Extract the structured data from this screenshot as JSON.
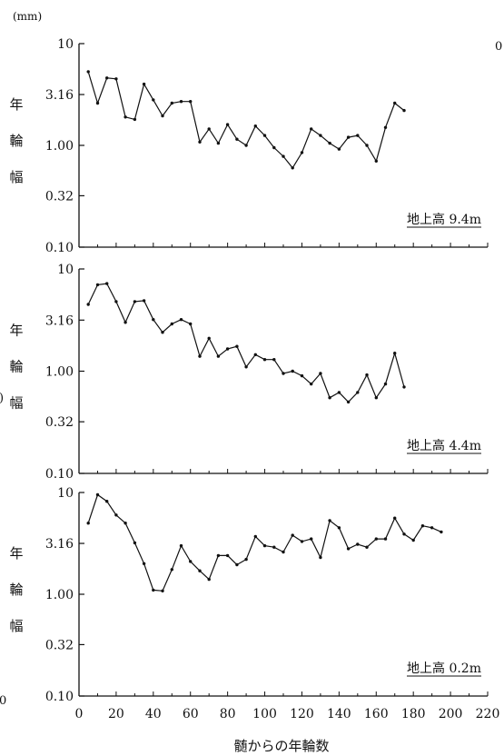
{
  "chart_data": [
    {
      "type": "line",
      "unit": "(mm)",
      "ylabel": [
        "年",
        "輪",
        "幅"
      ],
      "yscale": "log",
      "ylim": [
        0.1,
        10
      ],
      "yticks": [
        "10",
        "3.16",
        "1.00",
        "0.32",
        "0.10"
      ],
      "xlim": [
        0,
        220
      ],
      "label": "地上高 9.4m",
      "x": [
        5,
        10,
        15,
        20,
        25,
        30,
        35,
        40,
        45,
        50,
        55,
        60,
        65,
        70,
        75,
        80,
        85,
        90,
        95,
        100,
        105,
        110,
        115,
        120,
        125,
        130,
        135,
        140,
        145,
        150,
        155,
        160,
        165,
        170,
        175
      ],
      "y": [
        5.3,
        2.6,
        4.6,
        4.5,
        1.9,
        1.8,
        4.0,
        2.8,
        1.95,
        2.6,
        2.7,
        2.7,
        1.08,
        1.45,
        1.05,
        1.6,
        1.15,
        1.0,
        1.55,
        1.25,
        0.95,
        0.78,
        0.6,
        0.85,
        1.45,
        1.25,
        1.05,
        0.92,
        1.2,
        1.25,
        1.0,
        0.7,
        1.5,
        2.6,
        2.2
      ]
    },
    {
      "type": "line",
      "ylabel": [
        "年",
        "輪",
        "幅"
      ],
      "yscale": "log",
      "ylim": [
        0.1,
        10
      ],
      "yticks": [
        "10",
        "3.16",
        "1.00",
        "0.32",
        "0.10"
      ],
      "xlim": [
        0,
        220
      ],
      "label": "地上高 4.4m",
      "x": [
        5,
        10,
        15,
        20,
        25,
        30,
        35,
        40,
        45,
        50,
        55,
        60,
        65,
        70,
        75,
        80,
        85,
        90,
        95,
        100,
        105,
        110,
        115,
        120,
        125,
        130,
        135,
        140,
        145,
        150,
        155,
        160,
        165,
        170,
        175
      ],
      "y": [
        4.5,
        7.0,
        7.2,
        4.8,
        3.0,
        4.8,
        4.9,
        3.2,
        2.4,
        2.9,
        3.2,
        2.9,
        1.4,
        2.1,
        1.4,
        1.65,
        1.75,
        1.1,
        1.45,
        1.3,
        1.3,
        0.95,
        1.0,
        0.9,
        0.75,
        0.95,
        0.55,
        0.62,
        0.5,
        0.62,
        0.92,
        0.55,
        0.75,
        1.5,
        0.7
      ]
    },
    {
      "type": "line",
      "ylabel": [
        "年",
        "輪",
        "幅"
      ],
      "yscale": "log",
      "ylim": [
        0.1,
        10
      ],
      "yticks": [
        "10",
        "3.16",
        "1.00",
        "0.32",
        "0.10"
      ],
      "xlim": [
        0,
        220
      ],
      "xticks": [
        0,
        20,
        40,
        60,
        80,
        100,
        120,
        140,
        160,
        180,
        200,
        220
      ],
      "xlabel": "髄からの年輪数",
      "label": "地上高 0.2m",
      "x": [
        5,
        10,
        15,
        20,
        25,
        30,
        35,
        40,
        45,
        50,
        55,
        60,
        65,
        70,
        75,
        80,
        85,
        90,
        95,
        100,
        105,
        110,
        115,
        120,
        125,
        130,
        135,
        140,
        145,
        150,
        155,
        160,
        165,
        170,
        175,
        180,
        185,
        190,
        195
      ],
      "y": [
        5.0,
        9.5,
        8.2,
        6.0,
        5.0,
        3.2,
        2.0,
        1.1,
        1.08,
        1.75,
        3.0,
        2.1,
        1.7,
        1.4,
        2.4,
        2.4,
        1.95,
        2.2,
        3.7,
        3.0,
        2.9,
        2.6,
        3.8,
        3.3,
        3.5,
        2.3,
        5.3,
        4.5,
        2.8,
        3.1,
        2.9,
        3.5,
        3.5,
        5.6,
        3.9,
        3.4,
        4.7,
        4.5,
        4.1
      ]
    }
  ],
  "stray_marks": [
    "0",
    ")",
    "0"
  ]
}
